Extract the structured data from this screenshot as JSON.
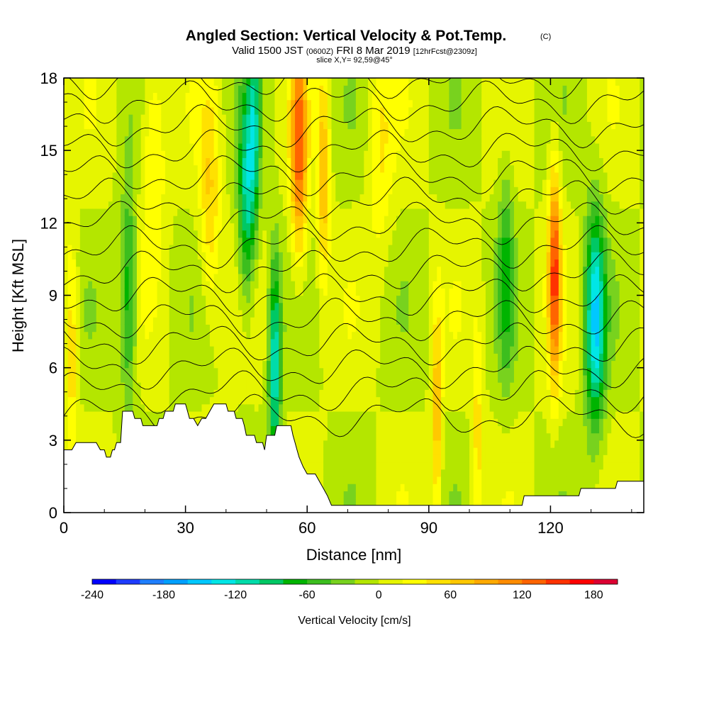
{
  "header": {
    "title": "Angled Section: Vertical Velocity & Pot.Temp.",
    "title_mark": "(C)",
    "valid_prefix": "Valid 1500 JST",
    "valid_utc": "(0600Z)",
    "valid_date": "FRI 8 Mar 2019",
    "forecast": "[12hrFcst@2309z]",
    "slice": "slice X,Y= 92,59@45°"
  },
  "chart_data": {
    "type": "heatmap",
    "xlabel": "Distance [nm]",
    "ylabel": "Height [Kft MSL]",
    "xlim": [
      0,
      143
    ],
    "ylim": [
      0,
      18
    ],
    "x_ticks": [
      0,
      30,
      60,
      90,
      120
    ],
    "x_tick_labels": [
      "0",
      "30",
      "60",
      "90",
      "120"
    ],
    "y_ticks": [
      0,
      3,
      6,
      9,
      12,
      15,
      18
    ],
    "y_tick_labels": [
      "0",
      "3",
      "6",
      "9",
      "12",
      "15",
      "18"
    ],
    "colorbar": {
      "label": "Vertical Velocity [cm/s]",
      "range": [
        -240,
        200
      ],
      "step": 20,
      "tick_labels": [
        "-240",
        "-180",
        "-120",
        "-60",
        "0",
        "60",
        "120",
        "180"
      ],
      "colors": [
        "#0000ff",
        "#1e3cff",
        "#1f7fff",
        "#00a0ff",
        "#00c8ff",
        "#00e6e6",
        "#00dcaa",
        "#00c864",
        "#00b400",
        "#3cbe1e",
        "#78d21e",
        "#b4e600",
        "#e6f500",
        "#ffff00",
        "#ffe100",
        "#ffc800",
        "#ffaa00",
        "#ff8c00",
        "#ff6400",
        "#ff3200",
        "#ff0000",
        "#dc0032",
        "#b40050",
        "#8c0064",
        "#640078"
      ]
    },
    "terrain": [
      [
        0,
        2.6
      ],
      [
        2,
        2.6
      ],
      [
        3,
        2.9
      ],
      [
        8,
        2.9
      ],
      [
        9,
        2.6
      ],
      [
        10,
        2.6
      ],
      [
        10.5,
        2.3
      ],
      [
        11.5,
        2.3
      ],
      [
        12,
        2.6
      ],
      [
        12.5,
        2.6
      ],
      [
        13,
        2.9
      ],
      [
        14,
        2.9
      ],
      [
        14.5,
        4.2
      ],
      [
        17,
        4.2
      ],
      [
        17.5,
        3.9
      ],
      [
        19,
        3.9
      ],
      [
        19.5,
        3.6
      ],
      [
        23,
        3.6
      ],
      [
        23.5,
        3.9
      ],
      [
        24.5,
        3.9
      ],
      [
        25,
        4.2
      ],
      [
        27,
        4.2
      ],
      [
        27.5,
        4.5
      ],
      [
        30,
        4.5
      ],
      [
        30.5,
        4.2
      ],
      [
        31,
        3.9
      ],
      [
        32,
        3.9
      ],
      [
        33,
        3.6
      ],
      [
        34,
        3.9
      ],
      [
        35,
        3.9
      ],
      [
        36,
        4.2
      ],
      [
        37,
        4.5
      ],
      [
        40,
        4.5
      ],
      [
        40.5,
        4.2
      ],
      [
        42,
        4.2
      ],
      [
        42.5,
        3.9
      ],
      [
        44,
        3.9
      ],
      [
        44.5,
        3.6
      ],
      [
        45,
        3.2
      ],
      [
        47,
        3.2
      ],
      [
        47.5,
        2.9
      ],
      [
        49,
        2.9
      ],
      [
        49.5,
        2.6
      ],
      [
        50,
        3.2
      ],
      [
        52,
        3.2
      ],
      [
        52.5,
        3.6
      ],
      [
        56,
        3.6
      ],
      [
        56.5,
        3.2
      ],
      [
        57,
        2.9
      ],
      [
        57.5,
        2.6
      ],
      [
        58,
        2.3
      ],
      [
        59,
        1.9
      ],
      [
        60,
        1.6
      ],
      [
        62,
        1.6
      ],
      [
        63,
        1.3
      ],
      [
        64,
        1.0
      ],
      [
        65,
        0.7
      ],
      [
        66,
        0.3
      ],
      [
        113,
        0.3
      ],
      [
        113.5,
        0.7
      ],
      [
        127,
        0.7
      ],
      [
        127.5,
        1.0
      ],
      [
        136,
        1.0
      ],
      [
        136.5,
        1.3
      ],
      [
        143,
        1.3
      ]
    ],
    "theta_levels": [
      4,
      5,
      6,
      7,
      8,
      9,
      10,
      11,
      12,
      13,
      14,
      15,
      16,
      17,
      18
    ],
    "velocity_features": [
      {
        "x": 2,
        "y": 7,
        "w": 1.5,
        "value": 60
      },
      {
        "x": 16,
        "y": 9,
        "w": 2,
        "value": -80
      },
      {
        "x": 22,
        "y": 15,
        "w": 3,
        "value": 50
      },
      {
        "x": 36,
        "y": 13,
        "w": 2.5,
        "value": 60
      },
      {
        "x": 45,
        "y": 13,
        "w": 2,
        "value": -100
      },
      {
        "x": 47,
        "y": 16,
        "w": 1.5,
        "value": -80
      },
      {
        "x": 52,
        "y": 6,
        "w": 1.5,
        "value": -120
      },
      {
        "x": 58,
        "y": 15,
        "w": 2,
        "value": 130
      },
      {
        "x": 64,
        "y": 14,
        "w": 1.5,
        "value": 80
      },
      {
        "x": 78,
        "y": 15,
        "w": 3,
        "value": 40
      },
      {
        "x": 92,
        "y": 4,
        "w": 1.2,
        "value": 80
      },
      {
        "x": 102,
        "y": 3,
        "w": 1.5,
        "value": 50
      },
      {
        "x": 109,
        "y": 10,
        "w": 2,
        "value": -60
      },
      {
        "x": 121,
        "y": 10,
        "w": 1.5,
        "value": 140
      },
      {
        "x": 131,
        "y": 8,
        "w": 2.5,
        "value": -140
      }
    ]
  }
}
